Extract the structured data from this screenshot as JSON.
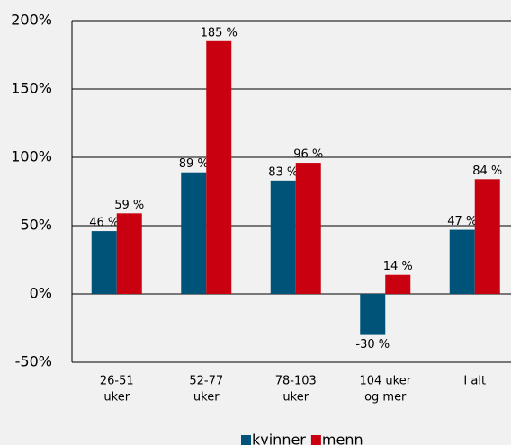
{
  "chart_data": {
    "type": "bar",
    "categories": [
      [
        "26-51",
        "uker"
      ],
      [
        "52-77",
        "uker"
      ],
      [
        "78-103",
        "uker"
      ],
      [
        "104 uker",
        "og mer"
      ],
      [
        "I alt"
      ]
    ],
    "series": [
      {
        "name": "kvinner",
        "color": "#005378",
        "values": [
          46,
          89,
          83,
          -30,
          47
        ],
        "value_labels": [
          "46 %",
          "89 %",
          "83 %",
          "-30 %",
          "47 %"
        ]
      },
      {
        "name": "menn",
        "color": "#c8000f",
        "values": [
          59,
          185,
          96,
          14,
          84
        ],
        "value_labels": [
          "59 %",
          "185 %",
          "96 %",
          "14 %",
          "84 %"
        ]
      }
    ],
    "ylim": [
      -50,
      200
    ],
    "yticks": [
      {
        "value": -50,
        "label": "-50%"
      },
      {
        "value": 0,
        "label": "0%"
      },
      {
        "value": 50,
        "label": "50%"
      },
      {
        "value": 100,
        "label": "100%"
      },
      {
        "value": 150,
        "label": "150%"
      },
      {
        "value": 200,
        "label": "200%"
      }
    ],
    "grid": true,
    "legend": "bottom"
  }
}
